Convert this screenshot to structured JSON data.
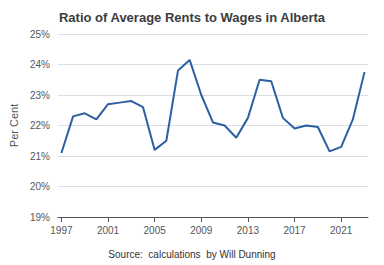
{
  "chart_data": {
    "type": "line",
    "title": "Ratio of Average Rents to Wages in Alberta",
    "ylabel": "Per Cent",
    "annotations": [
      "Source:  calculations  by Will Dunning"
    ],
    "x": [
      1997,
      1998,
      1999,
      2000,
      2001,
      2002,
      2003,
      2004,
      2005,
      2006,
      2007,
      2008,
      2009,
      2010,
      2011,
      2012,
      2013,
      2014,
      2015,
      2016,
      2017,
      2018,
      2019,
      2020,
      2021,
      2022,
      2023
    ],
    "values": [
      21.1,
      22.3,
      22.4,
      22.2,
      22.7,
      22.75,
      22.8,
      22.6,
      21.2,
      21.5,
      23.8,
      24.15,
      23.0,
      22.1,
      22.0,
      21.6,
      22.25,
      23.5,
      23.45,
      22.25,
      21.9,
      22.0,
      21.95,
      21.15,
      21.3,
      22.2,
      23.75
    ],
    "color": "#2E5FA3",
    "xlim": [
      1996.7,
      2023.3
    ],
    "xticks": [
      1997,
      2001,
      2005,
      2009,
      2013,
      2017,
      2021
    ],
    "ylim": [
      19.0,
      25.0
    ],
    "yticks": [
      {
        "value": 19,
        "label": "19%"
      },
      {
        "value": 20,
        "label": "20%"
      },
      {
        "value": 21,
        "label": "21%"
      },
      {
        "value": 22,
        "label": "22%"
      },
      {
        "value": 23,
        "label": "23%"
      },
      {
        "value": 24,
        "label": "24%"
      },
      {
        "value": 25,
        "label": "25%"
      }
    ],
    "grid": true
  }
}
